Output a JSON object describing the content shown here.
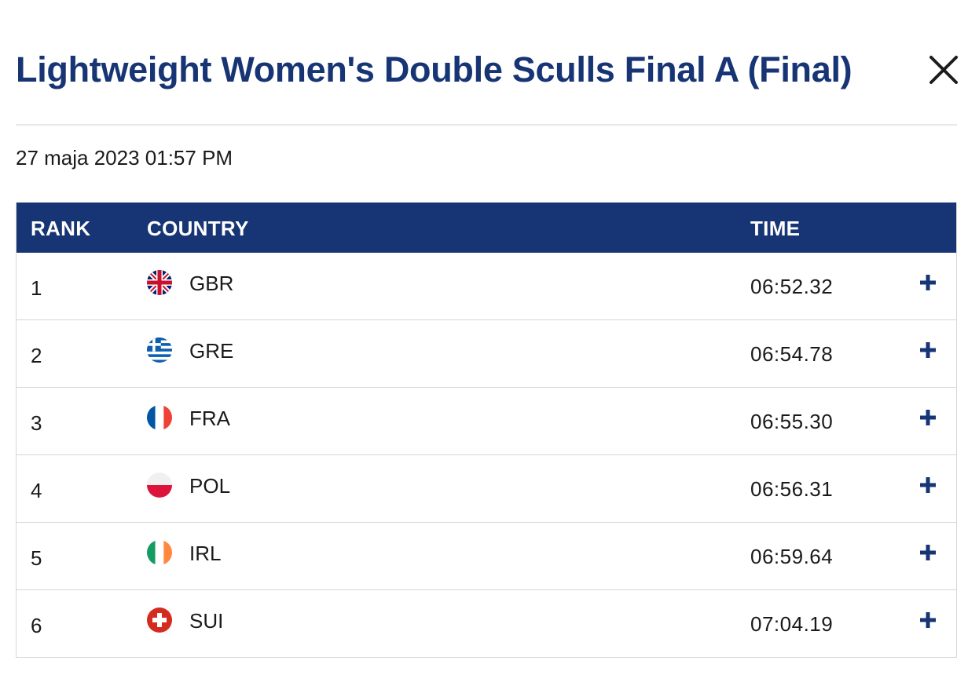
{
  "title": "Lightweight Women's Double Sculls Final A (Final)",
  "date": "27 maja 2023 01:57 PM",
  "colors": {
    "brand": "#173574",
    "divider": "#e8e8e8",
    "row_border": "#d6d6d6"
  },
  "table": {
    "headers": {
      "rank": "RANK",
      "country": "COUNTRY",
      "time": "TIME"
    },
    "rows": [
      {
        "rank": "1",
        "country": "GBR",
        "flag": "gbr-flag-icon",
        "time": "06:52.32"
      },
      {
        "rank": "2",
        "country": "GRE",
        "flag": "gre-flag-icon",
        "time": "06:54.78"
      },
      {
        "rank": "3",
        "country": "FRA",
        "flag": "fra-flag-icon",
        "time": "06:55.30"
      },
      {
        "rank": "4",
        "country": "POL",
        "flag": "pol-flag-icon",
        "time": "06:56.31"
      },
      {
        "rank": "5",
        "country": "IRL",
        "flag": "irl-flag-icon",
        "time": "06:59.64"
      },
      {
        "rank": "6",
        "country": "SUI",
        "flag": "sui-flag-icon",
        "time": "07:04.19"
      }
    ]
  },
  "icons": {
    "close": "close-icon",
    "expand": "plus-icon"
  }
}
